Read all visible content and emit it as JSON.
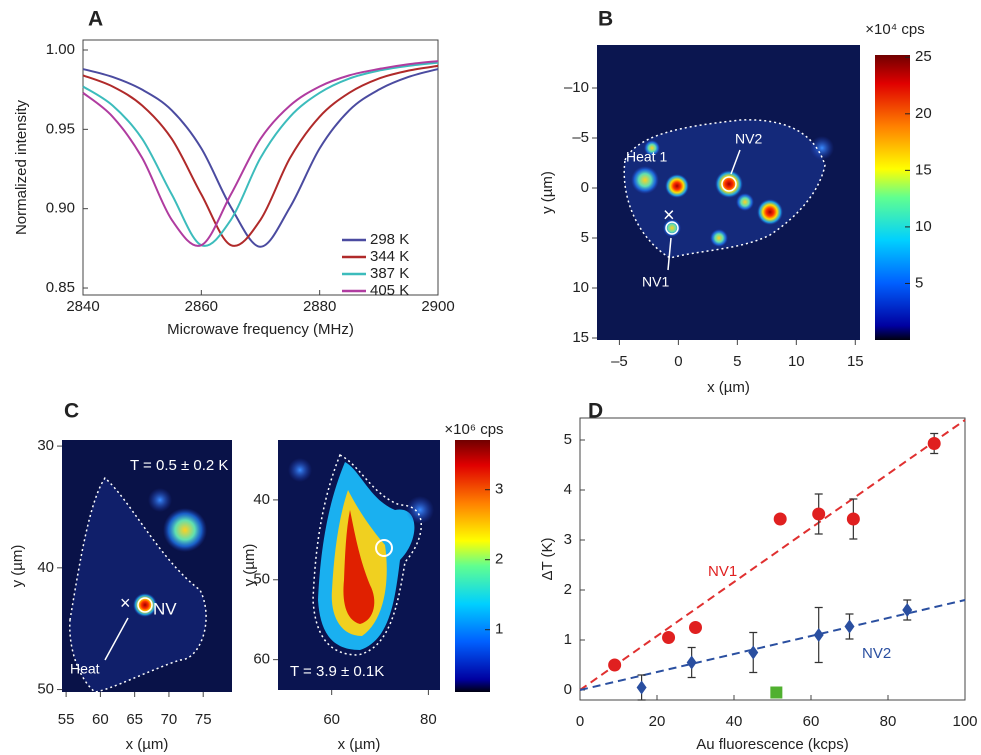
{
  "chart_data": [
    {
      "type": "line",
      "panel": "A",
      "xlabel": "Microwave frequency (MHz)",
      "ylabel": "Normalized intensity",
      "x": [
        2840,
        2845,
        2850,
        2855,
        2860,
        2865,
        2870,
        2875,
        2880,
        2885,
        2890,
        2895,
        2900
      ],
      "series": [
        {
          "name": "298 K",
          "color": "#4b4ba0",
          "values": [
            0.988,
            0.983,
            0.975,
            0.962,
            0.938,
            0.901,
            0.876,
            0.901,
            0.938,
            0.962,
            0.975,
            0.983,
            0.988
          ]
        },
        {
          "name": "344 K",
          "color": "#b02a2a",
          "values": [
            0.984,
            0.977,
            0.965,
            0.944,
            0.909,
            0.877,
            0.893,
            0.932,
            0.958,
            0.973,
            0.982,
            0.987,
            0.99
          ]
        },
        {
          "name": "387 K",
          "color": "#3cbcbc",
          "values": [
            0.977,
            0.965,
            0.944,
            0.909,
            0.877,
            0.893,
            0.932,
            0.958,
            0.973,
            0.982,
            0.987,
            0.99,
            0.992
          ]
        },
        {
          "name": "405 K",
          "color": "#b03ca0",
          "values": [
            0.973,
            0.958,
            0.932,
            0.893,
            0.877,
            0.909,
            0.944,
            0.965,
            0.977,
            0.984,
            0.988,
            0.991,
            0.993
          ]
        }
      ],
      "xlim": [
        2840,
        2900
      ],
      "xticks": [
        2840,
        2860,
        2880,
        2900
      ],
      "ylim": [
        0.8456,
        1.0063
      ],
      "yticks": [
        {
          "value": 1,
          "label": "1.00"
        },
        0.95,
        {
          "value": 0.9,
          "label": "0.90"
        },
        0.85
      ],
      "legend": "lower right"
    },
    {
      "type": "heatmap",
      "panel": "B",
      "xlabel": "x (µm)",
      "ylabel": "y (µm)",
      "xlim": [
        -6.9,
        15.4
      ],
      "xticks": [
        {
          "value": -5,
          "label": "–5"
        },
        0,
        5,
        10,
        15
      ],
      "ylim": [
        -14.3,
        15.2
      ],
      "yinverted": true,
      "yticks": [
        {
          "value": -10,
          "label": "–10"
        },
        {
          "value": -5,
          "label": "–5"
        },
        0,
        5,
        10,
        15
      ],
      "annotations": [
        "Heat 1",
        "NV2",
        "NV1",
        "×"
      ],
      "colorbar": {
        "label": "×10⁴ cps",
        "lim": [
          0,
          25.2
        ],
        "ticks": [
          5,
          10,
          15,
          20,
          25
        ]
      }
    },
    {
      "type": "heatmap",
      "panel": "C",
      "xlabel": "x (µm)",
      "ylabel": "y (µm)",
      "xlim": [
        54.4,
        79.2
      ],
      "xticks": [
        55,
        60,
        65,
        70,
        75
      ],
      "ylim": [
        29.5,
        50.2
      ],
      "yinverted": true,
      "yticks": [
        30,
        40,
        50
      ],
      "annotations": [
        "T = 0.5 ± 0.2 K",
        "Heat",
        "NV",
        "×"
      ]
    },
    {
      "type": "heatmap",
      "xlabel": "x (µm)",
      "ylabel": "y (µm)",
      "xlim": [
        48.9,
        82.4
      ],
      "xticks": [
        60,
        80
      ],
      "ylim": [
        32.5,
        63.8
      ],
      "yinverted": true,
      "yticks": [
        40,
        50,
        60
      ],
      "annotations": [
        "T = 3.9 ± 0.1K"
      ],
      "colorbar": {
        "label": "×10⁶ cps",
        "lim": [
          0.11,
          3.71
        ],
        "ticks": [
          1,
          2,
          3
        ]
      }
    },
    {
      "type": "scatter",
      "panel": "D",
      "xlabel": "Au fluorescence (kcps)",
      "ylabel": "ΔT (K)",
      "xlim": [
        0,
        100
      ],
      "xticks": [
        0,
        20,
        40,
        60,
        80,
        100
      ],
      "ylim": [
        -0.2,
        5.44
      ],
      "yticks": [
        0,
        1,
        2,
        3,
        4,
        5
      ],
      "series": [
        {
          "name": "NV1",
          "color": "#e02020",
          "marker": "circle",
          "x": [
            9,
            23,
            30,
            52,
            62,
            71,
            92
          ],
          "values": [
            0.5,
            1.05,
            1.25,
            3.42,
            3.52,
            3.42,
            4.93
          ],
          "errors": [
            0.05,
            0.05,
            0.05,
            0.08,
            0.4,
            0.4,
            0.2
          ]
        },
        {
          "name": "NV2",
          "color": "#2a4fa0",
          "marker": "diamond",
          "x": [
            16,
            29,
            45,
            62,
            70,
            85
          ],
          "values": [
            0.05,
            0.55,
            0.75,
            1.1,
            1.27,
            1.6
          ],
          "errors": [
            0.25,
            0.3,
            0.4,
            0.55,
            0.25,
            0.2
          ]
        },
        {
          "color": "#50b030",
          "marker": "square",
          "x": [
            51
          ],
          "values": [
            -0.05
          ]
        }
      ],
      "fits": [
        {
          "color": "#e03030",
          "x": [
            0,
            100
          ],
          "values": [
            0,
            5.4
          ]
        },
        {
          "color": "#2a4fa0",
          "x": [
            0,
            100
          ],
          "values": [
            0,
            1.8
          ]
        }
      ]
    }
  ]
}
